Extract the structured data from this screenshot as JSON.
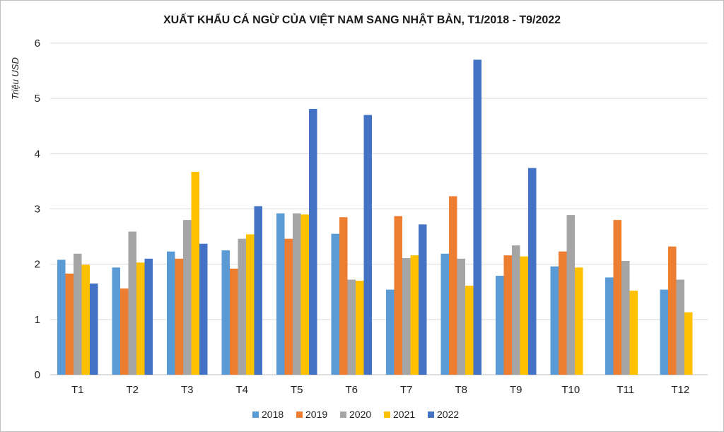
{
  "chart_data": {
    "type": "bar",
    "title": "XUẤT KHẨU CÁ NGỪ CỦA VIỆT NAM SANG NHẬT BẢN, T1/2018  - T9/2022",
    "xlabel": "",
    "ylabel": "Triệu USD",
    "ylim": [
      0,
      6
    ],
    "yticks": [
      "0",
      "1",
      "2",
      "3",
      "4",
      "5",
      "6"
    ],
    "grid": true,
    "legend": "bottom",
    "categories": [
      "T1",
      "T2",
      "T3",
      "T4",
      "T5",
      "T6",
      "T7",
      "T8",
      "T9",
      "T10",
      "T11",
      "T12"
    ],
    "series": [
      {
        "name": "2018",
        "color": "#5B9BD5",
        "values": [
          2.08,
          1.94,
          2.23,
          2.25,
          2.92,
          2.55,
          1.54,
          2.19,
          1.79,
          1.96,
          1.76,
          1.54
        ]
      },
      {
        "name": "2019",
        "color": "#ED7D31",
        "values": [
          1.83,
          1.56,
          2.1,
          1.92,
          2.46,
          2.85,
          2.87,
          3.23,
          2.16,
          2.23,
          2.8,
          2.32
        ]
      },
      {
        "name": "2020",
        "color": "#A5A5A5",
        "values": [
          2.19,
          2.59,
          2.8,
          2.46,
          2.92,
          1.72,
          2.11,
          2.1,
          2.34,
          2.89,
          2.06,
          1.72
        ]
      },
      {
        "name": "2021",
        "color": "#FFC000",
        "values": [
          1.99,
          2.03,
          3.67,
          2.54,
          2.9,
          1.7,
          2.16,
          1.61,
          2.14,
          1.94,
          1.52,
          1.13
        ]
      },
      {
        "name": "2022",
        "color": "#4472C4",
        "values": [
          1.65,
          2.1,
          2.37,
          3.05,
          4.81,
          4.7,
          2.72,
          5.7,
          3.74,
          null,
          null,
          null
        ]
      }
    ]
  }
}
